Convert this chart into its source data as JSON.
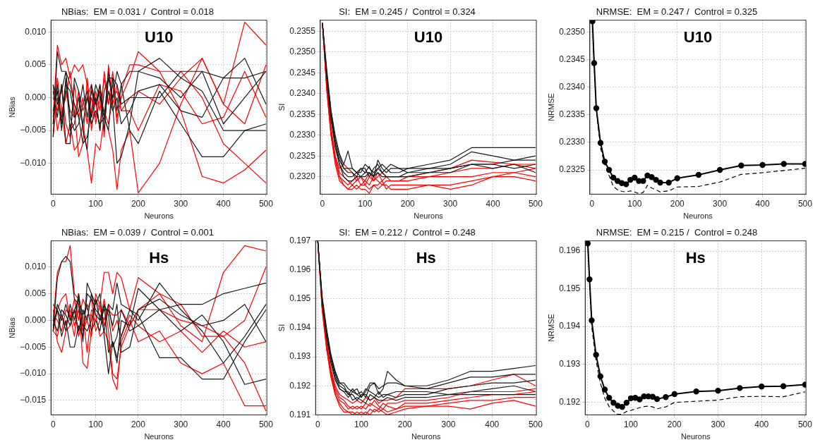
{
  "chart_data": [
    {
      "type": "line",
      "title": "NBias:  EM = 0.031 /  Control = 0.018",
      "xlabel": "Neurons",
      "ylabel": "NBias",
      "annotations": [
        "U10"
      ],
      "grid": true,
      "marker": "none",
      "line_style": "solid",
      "xlim": [
        -5,
        502
      ],
      "xticks": [
        0,
        100,
        200,
        300,
        400,
        500
      ],
      "ylim": [
        -0.0147,
        0.0118
      ],
      "yticks": [
        {
          "value": -0.01,
          "label": "−0.010"
        },
        {
          "value": -0.005,
          "label": "−0.005"
        },
        {
          "value": 0,
          "label": "0.000"
        },
        {
          "value": 0.005,
          "label": "0.005"
        },
        {
          "value": 0.01,
          "label": "0.010"
        }
      ],
      "x": [
        0,
        10,
        20,
        30,
        40,
        50,
        60,
        70,
        80,
        90,
        100,
        110,
        120,
        130,
        140,
        150,
        160,
        180,
        200,
        250,
        300,
        350,
        400,
        450,
        500
      ],
      "series": [
        {
          "color": "#1a1a1a",
          "values": [
            -0.006,
            0.007,
            0.004,
            0.004,
            0.002,
            -0.001,
            -0.003,
            -0.007,
            -0.006,
            -0.002,
            0.002,
            0.0,
            -0.003,
            0.004,
            -0.001,
            -0.01,
            -0.009,
            -0.004,
            0.004,
            0.006,
            0.003,
            0.001,
            -0.005,
            -0.005,
            -0.004
          ]
        },
        {
          "color": "#1a1a1a",
          "values": [
            0.001,
            -0.003,
            0.002,
            -0.007,
            -0.007,
            0.003,
            0.001,
            -0.005,
            -0.008,
            0.002,
            -0.001,
            0.001,
            -0.005,
            0.003,
            0.0,
            0.004,
            0.002,
            0.004,
            0.004,
            0.003,
            0.0,
            0.004,
            -0.004,
            0.0,
            0.004
          ]
        },
        {
          "color": "#1a1a1a",
          "values": [
            -0.004,
            0.002,
            -0.004,
            0.003,
            -0.005,
            -0.004,
            0.0,
            -0.004,
            0.0,
            -0.003,
            0.0,
            -0.005,
            0.001,
            0.003,
            0.003,
            -0.002,
            0.002,
            -0.005,
            -0.007,
            0.001,
            -0.004,
            -0.009,
            -0.009,
            -0.005,
            -0.005
          ]
        },
        {
          "color": "#1a1a1a",
          "values": [
            0.002,
            -0.001,
            0.001,
            0.004,
            -0.003,
            -0.005,
            -0.004,
            -0.001,
            0.001,
            -0.004,
            -0.002,
            -0.004,
            -0.003,
            -0.005,
            0.003,
            0.002,
            -0.001,
            0.0,
            0.0,
            0.0,
            0.004,
            0.004,
            0.003,
            0.003,
            0.004
          ]
        },
        {
          "color": "#1a1a1a",
          "values": [
            -0.002,
            0.001,
            -0.005,
            0.002,
            0.001,
            -0.003,
            -0.002,
            0.002,
            -0.003,
            0.001,
            -0.001,
            0.002,
            -0.003,
            0.001,
            -0.002,
            0.0,
            -0.004,
            -0.002,
            0.001,
            0.002,
            -0.002,
            -0.003,
            0.003,
            0.006,
            -0.001
          ]
        },
        {
          "color": "#ff0000",
          "values": [
            -0.003,
            0.008,
            0.005,
            0.006,
            0.003,
            0.005,
            0.004,
            0.005,
            0.002,
            -0.005,
            0.0,
            -0.005,
            0.004,
            -0.001,
            0.002,
            -0.004,
            0.001,
            0.005,
            0.005,
            0.004,
            -0.002,
            -0.012,
            -0.013,
            -0.011,
            -0.008
          ]
        },
        {
          "color": "#ff0000",
          "values": [
            0.002,
            -0.005,
            -0.002,
            -0.007,
            -0.004,
            -0.008,
            -0.007,
            -0.004,
            -0.008,
            -0.013,
            -0.007,
            -0.008,
            -0.003,
            -0.005,
            -0.008,
            -0.014,
            -0.008,
            -0.005,
            -0.0145,
            -0.01,
            -0.001,
            0.006,
            -0.001,
            0.0115,
            0.008
          ]
        },
        {
          "color": "#ff0000",
          "values": [
            -0.004,
            0.003,
            -0.002,
            0.0,
            0.004,
            -0.002,
            -0.009,
            -0.007,
            0.003,
            -0.003,
            0.001,
            -0.002,
            0.003,
            -0.001,
            0.004,
            -0.003,
            0.0,
            0.003,
            0.007,
            0.004,
            0.004,
            0.0,
            -0.007,
            -0.01,
            -0.013
          ]
        },
        {
          "color": "#ff0000",
          "values": [
            0.0,
            -0.002,
            0.002,
            -0.004,
            -0.006,
            0.002,
            -0.003,
            0.0,
            -0.004,
            0.0,
            -0.003,
            0.002,
            -0.006,
            0.005,
            -0.001,
            0.002,
            -0.002,
            -0.002,
            -0.005,
            0.002,
            0.001,
            -0.004,
            -0.003,
            0.004,
            -0.003
          ]
        },
        {
          "color": "#ff0000",
          "values": [
            -0.006,
            0.0,
            -0.003,
            0.001,
            -0.002,
            -0.003,
            0.001,
            -0.002,
            0.0,
            0.002,
            -0.004,
            0.0,
            -0.002,
            -0.004,
            0.0,
            0.001,
            -0.002,
            0.0,
            0.001,
            -0.001,
            0.003,
            0.006,
            -0.001,
            -0.004,
            0.005
          ]
        }
      ]
    },
    {
      "type": "line",
      "title": "SI:  EM = 0.245 /  Control = 0.324",
      "xlabel": "Neurons",
      "ylabel": "SI",
      "annotations": [
        "U10"
      ],
      "grid": true,
      "marker": "none",
      "line_style": "solid",
      "xlim": [
        -5,
        502
      ],
      "xticks": [
        0,
        100,
        200,
        300,
        400,
        500
      ],
      "ylim": [
        0.23158,
        0.23577
      ],
      "yticks": [
        {
          "value": 0.232,
          "label": "0.2320"
        },
        {
          "value": 0.2325,
          "label": "0.2325"
        },
        {
          "value": 0.233,
          "label": "0.2330"
        },
        {
          "value": 0.2335,
          "label": "0.2335"
        },
        {
          "value": 0.234,
          "label": "0.2340"
        },
        {
          "value": 0.2345,
          "label": "0.2345"
        },
        {
          "value": 0.235,
          "label": "0.2350"
        },
        {
          "value": 0.2355,
          "label": "0.2355"
        }
      ],
      "x": [
        0,
        10,
        20,
        30,
        40,
        50,
        60,
        70,
        80,
        90,
        100,
        110,
        120,
        130,
        140,
        150,
        160,
        180,
        200,
        250,
        300,
        350,
        400,
        450,
        500
      ],
      "series": [
        {
          "color": "#1a1a1a",
          "values": [
            0.2357,
            0.2346,
            0.2336,
            0.233,
            0.23255,
            0.2323,
            0.23262,
            0.2322,
            0.2321,
            0.2322,
            0.2321,
            0.23225,
            0.232,
            0.2324,
            0.2322,
            0.2321,
            0.2322,
            0.2322,
            0.2322,
            0.2323,
            0.2324,
            0.2327,
            0.2327,
            0.2327,
            0.2327
          ]
        },
        {
          "color": "#1a1a1a",
          "values": [
            0.2357,
            0.2345,
            0.2335,
            0.2328,
            0.2324,
            0.2322,
            0.2321,
            0.2321,
            0.232,
            0.2322,
            0.2322,
            0.232,
            0.2322,
            0.2323,
            0.2321,
            0.2322,
            0.2321,
            0.2321,
            0.2322,
            0.2322,
            0.2323,
            0.2326,
            0.2325,
            0.2324,
            0.2325
          ]
        },
        {
          "color": "#1a1a1a",
          "values": [
            0.2357,
            0.2344,
            0.2334,
            0.2328,
            0.2323,
            0.2321,
            0.232,
            0.232,
            0.2321,
            0.232,
            0.2321,
            0.2321,
            0.232,
            0.2322,
            0.2321,
            0.232,
            0.232,
            0.232,
            0.2321,
            0.2321,
            0.2322,
            0.2323,
            0.2323,
            0.2322,
            0.2323
          ]
        },
        {
          "color": "#1a1a1a",
          "values": [
            0.2357,
            0.2345,
            0.2336,
            0.2329,
            0.2325,
            0.2322,
            0.2322,
            0.2322,
            0.2321,
            0.2321,
            0.2323,
            0.2322,
            0.2321,
            0.2322,
            0.2323,
            0.2322,
            0.2323,
            0.2322,
            0.2321,
            0.2322,
            0.2322,
            0.2323,
            0.2323,
            0.2324,
            0.2324
          ]
        },
        {
          "color": "#1a1a1a",
          "values": [
            0.2357,
            0.2344,
            0.2334,
            0.2327,
            0.2323,
            0.232,
            0.2319,
            0.2319,
            0.232,
            0.232,
            0.232,
            0.2321,
            0.232,
            0.2321,
            0.232,
            0.232,
            0.232,
            0.232,
            0.232,
            0.2321,
            0.2321,
            0.2323,
            0.2322,
            0.2323,
            0.2321
          ]
        },
        {
          "color": "#ff0000",
          "values": [
            0.2357,
            0.2342,
            0.2331,
            0.2325,
            0.2322,
            0.2323,
            0.2322,
            0.2321,
            0.2319,
            0.232,
            0.2319,
            0.2321,
            0.2319,
            0.232,
            0.2321,
            0.232,
            0.232,
            0.232,
            0.232,
            0.2321,
            0.2322,
            0.2324,
            0.23235,
            0.2323,
            0.2322
          ]
        },
        {
          "color": "#ff0000",
          "values": [
            0.2357,
            0.2341,
            0.233,
            0.2323,
            0.2319,
            0.2318,
            0.2317,
            0.2317,
            0.2318,
            0.2317,
            0.2317,
            0.2316,
            0.2318,
            0.2318,
            0.2319,
            0.2317,
            0.2318,
            0.2318,
            0.2318,
            0.2318,
            0.2317,
            0.2318,
            0.232,
            0.2321,
            0.232
          ]
        },
        {
          "color": "#ff0000",
          "values": [
            0.2357,
            0.2342,
            0.2331,
            0.2324,
            0.232,
            0.2319,
            0.2318,
            0.2319,
            0.232,
            0.2318,
            0.2319,
            0.2318,
            0.232,
            0.2319,
            0.2318,
            0.2319,
            0.2319,
            0.2319,
            0.2319,
            0.232,
            0.232,
            0.232,
            0.2321,
            0.2321,
            0.2322
          ]
        },
        {
          "color": "#ff0000",
          "values": [
            0.2357,
            0.2343,
            0.2332,
            0.2325,
            0.2321,
            0.232,
            0.2319,
            0.2318,
            0.2319,
            0.232,
            0.2318,
            0.232,
            0.2319,
            0.2321,
            0.2319,
            0.232,
            0.2319,
            0.2319,
            0.232,
            0.232,
            0.2321,
            0.2322,
            0.2322,
            0.2323,
            0.2323
          ]
        },
        {
          "color": "#ff0000",
          "values": [
            0.2357,
            0.2341,
            0.233,
            0.2324,
            0.232,
            0.2318,
            0.2317,
            0.2318,
            0.2317,
            0.2318,
            0.2318,
            0.2317,
            0.2318,
            0.2317,
            0.2318,
            0.2318,
            0.2317,
            0.2317,
            0.2317,
            0.2318,
            0.2318,
            0.2319,
            0.232,
            0.232,
            0.2319
          ]
        }
      ]
    },
    {
      "type": "line",
      "title": "NRMSE:  EM = 0.247 /  Control = 0.325",
      "xlabel": "Neurons",
      "ylabel": "NRMSE",
      "annotations": [
        "U10"
      ],
      "grid": true,
      "xlim": [
        -5,
        502
      ],
      "xticks": [
        0,
        100,
        200,
        300,
        400,
        500
      ],
      "ylim": [
        0.23206,
        0.23522
      ],
      "yticks": [
        {
          "value": 0.2325,
          "label": "0.2325"
        },
        {
          "value": 0.233,
          "label": "0.2330"
        },
        {
          "value": 0.2335,
          "label": "0.2335"
        },
        {
          "value": 0.234,
          "label": "0.2340"
        },
        {
          "value": 0.2345,
          "label": "0.2345"
        },
        {
          "value": 0.235,
          "label": "0.2350"
        }
      ],
      "series": [
        {
          "color": "#000000",
          "marker": "circle",
          "line_style": "solid",
          "x": [
            1,
            5,
            10,
            20,
            30,
            40,
            50,
            60,
            70,
            80,
            90,
            100,
            110,
            120,
            130,
            140,
            150,
            160,
            180,
            200,
            250,
            300,
            350,
            400,
            450,
            500
          ],
          "values": [
            0.2352,
            0.23444,
            0.23362,
            0.23299,
            0.23265,
            0.2325,
            0.23236,
            0.2323,
            0.23226,
            0.23224,
            0.23232,
            0.23236,
            0.2323,
            0.2323,
            0.2324,
            0.23237,
            0.23232,
            0.23227,
            0.23227,
            0.23235,
            0.23241,
            0.2325,
            0.23258,
            0.23259,
            0.23261,
            0.23261
          ]
        },
        {
          "color": "#000000",
          "marker": "none",
          "line_style": "dashed",
          "x": [
            1,
            5,
            10,
            20,
            30,
            40,
            50,
            60,
            70,
            80,
            90,
            100,
            110,
            120,
            130,
            140,
            150,
            160,
            180,
            200,
            250,
            300,
            350,
            400,
            450,
            500
          ],
          "values": [
            0.2352,
            0.2344,
            0.2336,
            0.2329,
            0.2326,
            0.2324,
            0.2322,
            0.23214,
            0.23211,
            0.2321,
            0.23212,
            0.2321,
            0.23207,
            0.23209,
            0.23222,
            0.23217,
            0.23214,
            0.2321,
            0.23212,
            0.23219,
            0.2322,
            0.23228,
            0.23242,
            0.23245,
            0.23249,
            0.23253
          ]
        }
      ]
    },
    {
      "type": "line",
      "title": "NBias:  EM = 0.039 /  Control = 0.001",
      "xlabel": "Neurons",
      "ylabel": "NBias",
      "annotations": [
        "Hs"
      ],
      "grid": true,
      "marker": "none",
      "line_style": "solid",
      "xlim": [
        -5,
        502
      ],
      "xticks": [
        0,
        100,
        200,
        300,
        400,
        500
      ],
      "ylim": [
        -0.0177,
        0.0149
      ],
      "yticks": [
        {
          "value": -0.015,
          "label": "−0.015"
        },
        {
          "value": -0.01,
          "label": "−0.010"
        },
        {
          "value": -0.005,
          "label": "−0.005"
        },
        {
          "value": 0,
          "label": "0.000"
        },
        {
          "value": 0.005,
          "label": "0.005"
        },
        {
          "value": 0.01,
          "label": "0.010"
        }
      ],
      "x": [
        0,
        10,
        20,
        30,
        40,
        50,
        60,
        70,
        80,
        90,
        100,
        110,
        120,
        130,
        140,
        150,
        160,
        180,
        200,
        250,
        300,
        350,
        400,
        450,
        500
      ],
      "series": [
        {
          "color": "#1a1a1a",
          "values": [
            -0.002,
            0.008,
            0.011,
            0.012,
            0.011,
            0.004,
            0.003,
            -0.004,
            0.007,
            0.005,
            0.003,
            0.005,
            -0.003,
            -0.01,
            -0.004,
            -0.008,
            0.0,
            -0.001,
            0.006,
            0.002,
            -0.002,
            0.001,
            -0.004,
            -0.012,
            -0.011
          ]
        },
        {
          "color": "#1a1a1a",
          "values": [
            0.003,
            0.002,
            -0.003,
            0.0,
            -0.005,
            -0.005,
            -0.001,
            -0.003,
            0.005,
            0.004,
            0.002,
            0.001,
            -0.002,
            0.003,
            0.002,
            0.007,
            0.003,
            0.002,
            0.0,
            0.007,
            0.002,
            -0.002,
            -0.008,
            -0.003,
            0.003
          ]
        },
        {
          "color": "#1a1a1a",
          "values": [
            -0.002,
            0.003,
            0.001,
            -0.002,
            0.003,
            0.0,
            0.005,
            -0.001,
            -0.002,
            0.0,
            0.004,
            0.0,
            0.003,
            -0.006,
            -0.004,
            -0.007,
            -0.003,
            0.002,
            0.001,
            -0.007,
            -0.007,
            -0.011,
            -0.011,
            -0.004,
            0.002
          ]
        },
        {
          "color": "#1a1a1a",
          "values": [
            0.0,
            -0.002,
            0.002,
            0.001,
            -0.001,
            0.002,
            -0.002,
            0.002,
            0.0,
            0.005,
            0.001,
            0.0,
            0.002,
            0.002,
            -0.001,
            0.003,
            -0.006,
            -0.005,
            0.002,
            0.004,
            0.001,
            -0.001,
            0.0,
            0.003,
            -0.004
          ]
        },
        {
          "color": "#1a1a1a",
          "values": [
            -0.001,
            0.002,
            0.0,
            0.003,
            0.0,
            0.002,
            0.004,
            0.001,
            0.003,
            -0.002,
            0.0,
            -0.002,
            0.003,
            0.001,
            -0.005,
            -0.003,
            0.002,
            -0.002,
            -0.001,
            0.002,
            0.003,
            0.003,
            0.005,
            0.006,
            0.007
          ]
        },
        {
          "color": "#ff0000",
          "values": [
            0.0,
            0.009,
            0.011,
            0.011,
            0.014,
            0.005,
            0.004,
            -0.008,
            -0.009,
            -0.002,
            0.005,
            0.003,
            0.009,
            0.009,
            0.005,
            0.009,
            0.008,
            0.002,
            0.008,
            0.005,
            -0.001,
            -0.004,
            0.009,
            0.014,
            0.013
          ]
        },
        {
          "color": "#ff0000",
          "values": [
            0.002,
            -0.004,
            -0.006,
            -0.002,
            -0.001,
            0.002,
            -0.003,
            0.001,
            -0.006,
            0.002,
            0.001,
            -0.003,
            -0.002,
            -0.004,
            -0.011,
            -0.013,
            -0.004,
            0.0,
            -0.004,
            -0.002,
            -0.008,
            -0.01,
            -0.008,
            -0.016,
            -0.016
          ]
        },
        {
          "color": "#ff0000",
          "values": [
            -0.002,
            0.002,
            0.004,
            0.005,
            0.0,
            0.004,
            0.0,
            0.004,
            0.002,
            0.004,
            -0.002,
            0.0,
            0.004,
            -0.002,
            -0.01,
            -0.011,
            -0.005,
            -0.001,
            0.002,
            0.005,
            0.003,
            -0.003,
            -0.003,
            0.0,
            0.01
          ]
        },
        {
          "color": "#ff0000",
          "values": [
            0.001,
            0.0,
            -0.002,
            0.002,
            0.001,
            -0.003,
            0.005,
            -0.002,
            0.0,
            -0.003,
            0.004,
            0.002,
            0.0,
            0.003,
            -0.002,
            0.0,
            -0.003,
            0.001,
            -0.001,
            -0.004,
            -0.002,
            -0.006,
            -0.002,
            -0.005,
            -0.004
          ]
        },
        {
          "color": "#ff0000",
          "values": [
            -0.002,
            -0.003,
            0.001,
            -0.001,
            0.002,
            -0.001,
            0.002,
            -0.002,
            0.001,
            0.001,
            0.0,
            0.003,
            -0.001,
            0.002,
            0.001,
            0.001,
            0.002,
            -0.001,
            0.002,
            0.002,
            0.0,
            -0.001,
            -0.003,
            -0.008,
            -0.017
          ]
        }
      ]
    },
    {
      "type": "line",
      "title": "SI:  EM = 0.212 /  Control = 0.248",
      "xlabel": "Neurons",
      "ylabel": "SI",
      "annotations": [
        "Hs"
      ],
      "grid": true,
      "marker": "none",
      "line_style": "solid",
      "xlim": [
        -5,
        502
      ],
      "xticks": [
        0,
        100,
        200,
        300,
        400,
        500
      ],
      "ylim": [
        0.191,
        0.197
      ],
      "yticks": [
        0.191,
        0.192,
        0.193,
        0.194,
        0.195,
        0.196,
        0.197
      ],
      "x": [
        0,
        10,
        20,
        30,
        40,
        50,
        60,
        70,
        80,
        90,
        100,
        110,
        120,
        130,
        140,
        150,
        160,
        180,
        200,
        250,
        300,
        350,
        400,
        450,
        500
      ],
      "series": [
        {
          "color": "#1a1a1a",
          "values": [
            0.197,
            0.195,
            0.1939,
            0.193,
            0.1925,
            0.1921,
            0.1921,
            0.1919,
            0.1918,
            0.1919,
            0.1916,
            0.1918,
            0.1921,
            0.1921,
            0.1917,
            0.1919,
            0.1925,
            0.1922,
            0.192,
            0.192,
            0.1922,
            0.1925,
            0.1925,
            0.1926,
            0.1927
          ]
        },
        {
          "color": "#1a1a1a",
          "values": [
            0.197,
            0.1951,
            0.194,
            0.1931,
            0.1925,
            0.1921,
            0.192,
            0.1917,
            0.1919,
            0.1917,
            0.1918,
            0.1916,
            0.192,
            0.1921,
            0.1919,
            0.192,
            0.1921,
            0.1921,
            0.192,
            0.1919,
            0.1921,
            0.1923,
            0.1923,
            0.1924,
            0.1924
          ]
        },
        {
          "color": "#1a1a1a",
          "values": [
            0.197,
            0.1949,
            0.1938,
            0.1929,
            0.1923,
            0.1919,
            0.1918,
            0.1918,
            0.1915,
            0.1916,
            0.1915,
            0.1914,
            0.1917,
            0.1916,
            0.1918,
            0.1916,
            0.1917,
            0.1916,
            0.1917,
            0.1917,
            0.1919,
            0.192,
            0.1921,
            0.1921,
            0.1922
          ]
        },
        {
          "color": "#1a1a1a",
          "values": [
            0.197,
            0.195,
            0.1939,
            0.193,
            0.1924,
            0.192,
            0.1919,
            0.1917,
            0.1917,
            0.1915,
            0.1917,
            0.1917,
            0.1915,
            0.1916,
            0.1915,
            0.1915,
            0.1916,
            0.1915,
            0.1916,
            0.1916,
            0.1917,
            0.1918,
            0.1919,
            0.192,
            0.1918
          ]
        },
        {
          "color": "#1a1a1a",
          "values": [
            0.197,
            0.1949,
            0.1937,
            0.1928,
            0.1922,
            0.1919,
            0.1918,
            0.1916,
            0.1918,
            0.1917,
            0.1916,
            0.1919,
            0.1918,
            0.1917,
            0.1916,
            0.1917,
            0.1917,
            0.1918,
            0.1918,
            0.1918,
            0.1917,
            0.1917,
            0.1917,
            0.1917,
            0.1917
          ]
        },
        {
          "color": "#ff0000",
          "values": [
            0.197,
            0.1948,
            0.1935,
            0.1926,
            0.192,
            0.1917,
            0.1916,
            0.1915,
            0.1914,
            0.1915,
            0.1914,
            0.1916,
            0.1915,
            0.1916,
            0.1914,
            0.1915,
            0.1915,
            0.1916,
            0.1919,
            0.1919,
            0.1919,
            0.192,
            0.1922,
            0.1924,
            0.192
          ]
        },
        {
          "color": "#ff0000",
          "values": [
            0.197,
            0.1947,
            0.1933,
            0.1924,
            0.1917,
            0.1914,
            0.1912,
            0.1911,
            0.1911,
            0.191,
            0.1911,
            0.191,
            0.1912,
            0.1911,
            0.1912,
            0.1911,
            0.191,
            0.1911,
            0.1912,
            0.1913,
            0.1913,
            0.1912,
            0.1914,
            0.1915,
            0.1913
          ]
        },
        {
          "color": "#ff0000",
          "values": [
            0.197,
            0.1947,
            0.1934,
            0.1925,
            0.1918,
            0.1915,
            0.1914,
            0.1912,
            0.1913,
            0.1912,
            0.1913,
            0.1912,
            0.1914,
            0.1913,
            0.1912,
            0.1914,
            0.1913,
            0.1912,
            0.1914,
            0.1914,
            0.1915,
            0.1916,
            0.1917,
            0.1917,
            0.1918
          ]
        },
        {
          "color": "#ff0000",
          "values": [
            0.197,
            0.1948,
            0.1935,
            0.1925,
            0.1919,
            0.1916,
            0.1915,
            0.1913,
            0.1912,
            0.1913,
            0.1912,
            0.1914,
            0.1913,
            0.1915,
            0.1913,
            0.1912,
            0.1914,
            0.1914,
            0.1915,
            0.1915,
            0.1916,
            0.1918,
            0.1918,
            0.1918,
            0.1919
          ]
        },
        {
          "color": "#ff0000",
          "values": [
            0.197,
            0.1946,
            0.1933,
            0.1923,
            0.1917,
            0.1913,
            0.1911,
            0.1911,
            0.191,
            0.1911,
            0.191,
            0.1911,
            0.191,
            0.1912,
            0.1911,
            0.1912,
            0.1911,
            0.1912,
            0.1913,
            0.1913,
            0.1914,
            0.1915,
            0.1915,
            0.1916,
            0.1916
          ]
        }
      ]
    },
    {
      "type": "line",
      "title": "NRMSE:  EM = 0.215 /  Control = 0.248",
      "xlabel": "Neurons",
      "ylabel": "NRMSE",
      "annotations": [
        "Hs"
      ],
      "grid": true,
      "xlim": [
        -5,
        502
      ],
      "xticks": [
        0,
        100,
        200,
        300,
        400,
        500
      ],
      "ylim": [
        0.19166,
        0.19627
      ],
      "yticks": [
        0.192,
        0.193,
        0.194,
        0.195,
        0.196
      ],
      "series": [
        {
          "color": "#000000",
          "marker": "circle",
          "line_style": "solid",
          "x": [
            1,
            5,
            10,
            20,
            30,
            40,
            50,
            60,
            70,
            80,
            90,
            100,
            110,
            120,
            130,
            140,
            150,
            160,
            180,
            200,
            250,
            300,
            350,
            400,
            450,
            500
          ],
          "values": [
            0.1962,
            0.19525,
            0.19416,
            0.19325,
            0.19268,
            0.19233,
            0.19211,
            0.19198,
            0.1919,
            0.19187,
            0.19198,
            0.1921,
            0.19211,
            0.19207,
            0.19215,
            0.19215,
            0.19214,
            0.19208,
            0.19213,
            0.19221,
            0.19228,
            0.1923,
            0.19237,
            0.19241,
            0.19242,
            0.19246
          ]
        },
        {
          "color": "#000000",
          "marker": "none",
          "line_style": "dashed",
          "x": [
            1,
            5,
            10,
            20,
            30,
            40,
            50,
            60,
            70,
            80,
            90,
            100,
            120,
            130,
            140,
            150,
            160,
            180,
            200,
            250,
            300,
            350,
            400,
            450,
            500
          ],
          "values": [
            0.1962,
            0.1952,
            0.194,
            0.1931,
            0.1925,
            0.1921,
            0.19188,
            0.19176,
            0.19167,
            0.19168,
            0.19175,
            0.19178,
            0.19185,
            0.19188,
            0.19189,
            0.19187,
            0.19182,
            0.19187,
            0.19199,
            0.19202,
            0.19205,
            0.19214,
            0.19215,
            0.19214,
            0.19227
          ]
        }
      ]
    }
  ]
}
